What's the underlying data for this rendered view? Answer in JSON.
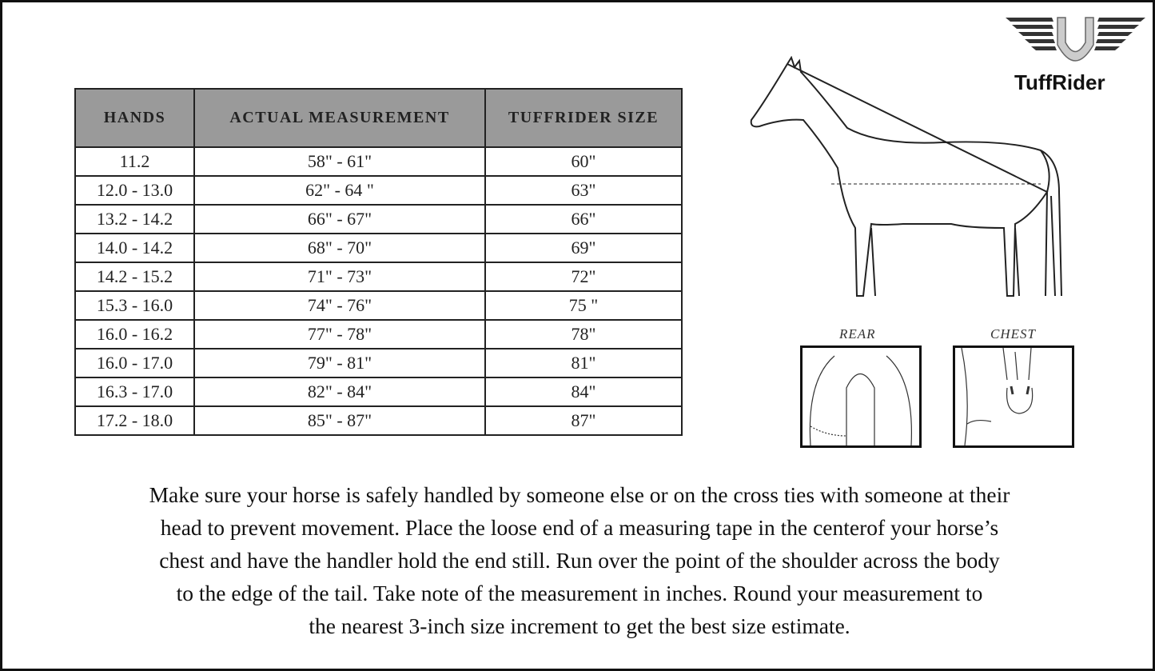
{
  "logo": {
    "text": "TuffRider"
  },
  "table": {
    "headers": [
      "HANDS",
      "ACTUAL MEASUREMENT",
      "TUFFRIDER SIZE"
    ],
    "rows": [
      [
        "11.2",
        "58\" - 61\"",
        "60\""
      ],
      [
        "12.0 - 13.0",
        "62\" - 64 \"",
        "63\""
      ],
      [
        "13.2 - 14.2",
        "66\" - 67\"",
        "66\""
      ],
      [
        "14.0 - 14.2",
        "68\" - 70\"",
        "69\""
      ],
      [
        "14.2 - 15.2",
        "71\" - 73\"",
        "72\""
      ],
      [
        "15.3 - 16.0",
        "74\" - 76\"",
        "75 \""
      ],
      [
        "16.0 - 16.2",
        "77\" - 78\"",
        "78\""
      ],
      [
        "16.0 - 17.0",
        "79\" - 81\"",
        "81\""
      ],
      [
        "16.3 - 17.0",
        "82\" - 84\"",
        "84\""
      ],
      [
        "17.2 - 18.0",
        "85\" - 87\"",
        "87\""
      ]
    ]
  },
  "diagram": {
    "rear_label": "REAR",
    "chest_label": "CHEST"
  },
  "instructions": [
    "Make sure your horse is safely handled by someone else or on the cross ties with someone at their",
    "head to prevent movement. Place the loose end of a measuring tape in the centerof your horse’s",
    "chest and have the handler hold the end still. Run over the point of the shoulder across the body",
    "to the edge of the tail. Take note of the measurement in inches. Round your measurement to",
    "the nearest 3-inch size increment to get the best size estimate."
  ]
}
